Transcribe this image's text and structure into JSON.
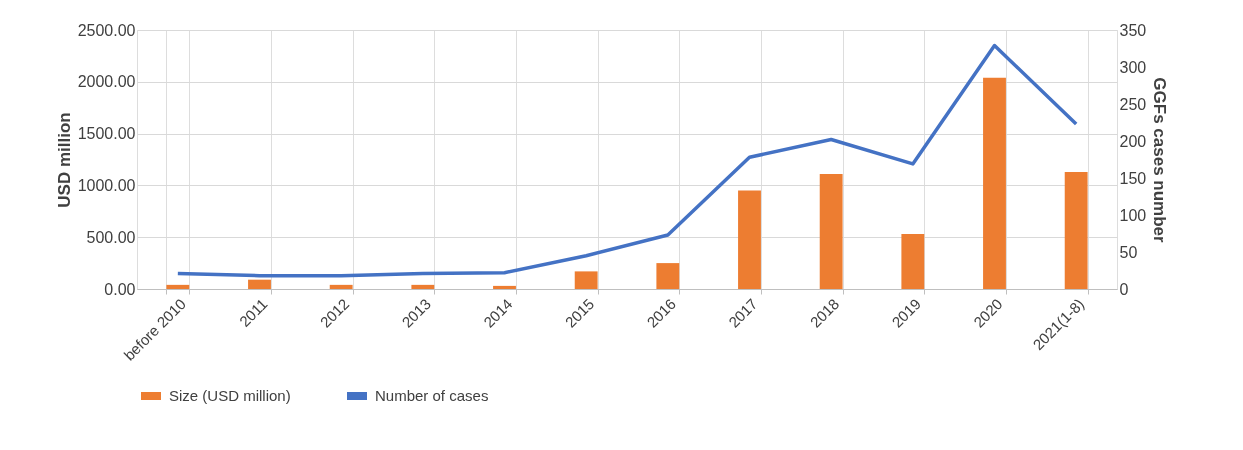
{
  "chart_data": {
    "type": "bar",
    "categories": [
      "before 2010",
      "2011",
      "2012",
      "2013",
      "2014",
      "2015",
      "2016",
      "2017",
      "2018",
      "2019",
      "2020",
      "2021(1-8)"
    ],
    "ylabel": "USD million",
    "y2label": "GGFs cases number",
    "series": [
      {
        "name": "Size (USD million)",
        "color": "#ed7d31",
        "values": [
          40,
          90,
          40,
          40,
          30,
          170,
          250,
          950,
          1110,
          530,
          2040,
          1130
        ]
      },
      {
        "name": "Number of cases",
        "type": "line",
        "axis": "y2",
        "color": "#4472c4",
        "values": [
          21,
          18,
          18,
          21,
          22,
          45,
          73,
          178,
          202,
          169,
          329,
          223
        ]
      }
    ],
    "ylim": [
      0,
      2500
    ],
    "yticks": [
      {
        "value": 0,
        "label": "0.00"
      },
      {
        "value": 500,
        "label": "500.00"
      },
      {
        "value": 1000,
        "label": "1000.00"
      },
      {
        "value": 1500,
        "label": "1500.00"
      },
      {
        "value": 2000,
        "label": "2000.00"
      },
      {
        "value": 2500,
        "label": "2500.00"
      }
    ],
    "y2lim": [
      0,
      350
    ],
    "y2ticks": [
      0,
      50,
      100,
      150,
      200,
      250,
      300,
      350
    ],
    "grid": true,
    "legend": "bottom",
    "line_style": "solid",
    "marker": "none"
  }
}
